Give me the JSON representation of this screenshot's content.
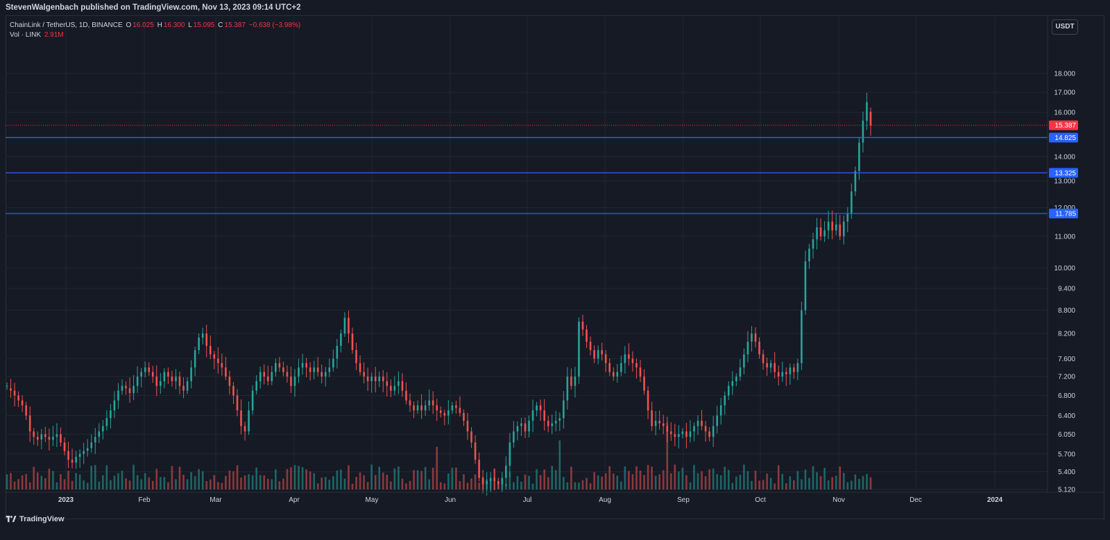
{
  "header": {
    "published_text": "StevenWalgenbach published on TradingView.com, Nov 13, 2023 09:14 UTC+2"
  },
  "legend": {
    "symbol": "ChainLink / TetherUS, 1D, BINANCE",
    "o_label": "O",
    "o_value": "16.025",
    "h_label": "H",
    "h_value": "16.300",
    "l_label": "L",
    "l_value": "15.095",
    "c_label": "C",
    "c_value": "15.387",
    "change": "−0.638 (−3.98%)",
    "vol_label": "Vol · LINK",
    "vol_value": "2.91M"
  },
  "currency_button": "USDT",
  "footer": {
    "brand": "TradingView"
  },
  "colors": {
    "up": "#26a69a",
    "down": "#ef5350",
    "level_line": "#2962ff",
    "price_tag": "#f23645",
    "grid": "#232733"
  },
  "chart_data": {
    "type": "candlestick",
    "symbol": "LINK/USDT",
    "timeframe": "1D",
    "y_scale": "log",
    "y_tick_labels": [
      "5.120",
      "5.400",
      "5.700",
      "6.050",
      "6.400",
      "6.800",
      "7.200",
      "7.600",
      "8.200",
      "8.800",
      "9.400",
      "10.000",
      "11.000",
      "12.000",
      "13.000",
      "14.000",
      "16.000",
      "17.000",
      "18.000"
    ],
    "x_tick_labels": [
      "2023",
      "Feb",
      "Mar",
      "Apr",
      "May",
      "Jun",
      "Jul",
      "Aug",
      "Sep",
      "Oct",
      "Nov",
      "Dec",
      "2024"
    ],
    "last_price": 15.387,
    "horizontal_levels": [
      14.825,
      13.325,
      11.785
    ],
    "level_labels": [
      "14.825",
      "13.325",
      "11.785"
    ],
    "last_price_label": "15.387",
    "ylim": [
      5.12,
      19.0
    ],
    "approx_closes": [
      [
        7.0,
        7.0
      ],
      [
        6.95,
        6.9
      ],
      [
        6.9,
        6.8
      ],
      [
        6.8,
        6.7
      ],
      [
        6.7,
        6.6
      ],
      [
        6.6,
        6.4
      ],
      [
        6.4,
        6.1
      ],
      [
        6.1,
        6.0
      ],
      [
        6.0,
        5.95
      ],
      [
        5.95,
        6.05
      ],
      [
        6.05,
        6.0
      ],
      [
        6.0,
        5.95
      ],
      [
        5.95,
        6.0
      ],
      [
        6.0,
        6.05
      ],
      [
        6.05,
        5.9
      ],
      [
        5.9,
        5.75
      ],
      [
        5.75,
        5.6
      ],
      [
        5.6,
        5.55
      ],
      [
        5.55,
        5.65
      ],
      [
        5.65,
        5.7
      ],
      [
        5.7,
        5.75
      ],
      [
        5.75,
        5.8
      ],
      [
        5.8,
        5.9
      ],
      [
        5.9,
        6.0
      ],
      [
        6.0,
        6.1
      ],
      [
        6.1,
        6.2
      ],
      [
        6.2,
        6.35
      ],
      [
        6.35,
        6.5
      ],
      [
        6.5,
        6.7
      ],
      [
        6.7,
        6.9
      ],
      [
        6.9,
        7.0
      ],
      [
        7.0,
        6.95
      ],
      [
        6.95,
        6.85
      ],
      [
        6.85,
        7.0
      ],
      [
        7.0,
        7.2
      ],
      [
        7.2,
        7.3
      ],
      [
        7.3,
        7.4
      ],
      [
        7.4,
        7.3
      ],
      [
        7.3,
        7.2
      ],
      [
        7.2,
        7.0
      ],
      [
        7.0,
        7.1
      ],
      [
        7.1,
        7.3
      ],
      [
        7.3,
        7.2
      ],
      [
        7.2,
        7.1
      ],
      [
        7.1,
        7.2
      ],
      [
        7.2,
        7.0
      ],
      [
        7.0,
        6.9
      ],
      [
        6.9,
        7.1
      ],
      [
        7.1,
        7.4
      ],
      [
        7.4,
        7.8
      ],
      [
        7.8,
        8.1
      ],
      [
        8.1,
        8.2
      ],
      [
        8.2,
        7.9
      ],
      [
        7.9,
        7.7
      ],
      [
        7.7,
        7.6
      ],
      [
        7.6,
        7.5
      ],
      [
        7.5,
        7.4
      ],
      [
        7.4,
        7.2
      ],
      [
        7.2,
        7.0
      ],
      [
        7.0,
        6.8
      ],
      [
        6.8,
        6.5
      ],
      [
        6.5,
        6.2
      ],
      [
        6.2,
        6.1
      ],
      [
        6.1,
        6.5
      ],
      [
        6.5,
        6.9
      ],
      [
        6.9,
        7.1
      ],
      [
        7.1,
        7.3
      ],
      [
        7.3,
        7.2
      ],
      [
        7.2,
        7.1
      ],
      [
        7.1,
        7.3
      ],
      [
        7.3,
        7.5
      ],
      [
        7.5,
        7.4
      ],
      [
        7.4,
        7.3
      ],
      [
        7.3,
        7.2
      ],
      [
        7.2,
        7.0
      ],
      [
        7.0,
        7.2
      ],
      [
        7.2,
        7.4
      ],
      [
        7.4,
        7.5
      ],
      [
        7.5,
        7.4
      ],
      [
        7.4,
        7.3
      ],
      [
        7.3,
        7.4
      ],
      [
        7.4,
        7.3
      ],
      [
        7.3,
        7.2
      ],
      [
        7.2,
        7.3
      ],
      [
        7.3,
        7.4
      ],
      [
        7.4,
        7.6
      ],
      [
        7.6,
        7.9
      ],
      [
        7.9,
        8.2
      ],
      [
        8.2,
        8.6
      ],
      [
        8.6,
        8.2
      ],
      [
        8.2,
        7.8
      ],
      [
        7.8,
        7.5
      ],
      [
        7.5,
        7.3
      ],
      [
        7.3,
        7.2
      ],
      [
        7.2,
        7.1
      ],
      [
        7.1,
        7.2
      ],
      [
        7.2,
        7.1
      ],
      [
        7.1,
        7.2
      ],
      [
        7.2,
        7.1
      ],
      [
        7.1,
        7.0
      ],
      [
        7.0,
        6.9
      ],
      [
        6.9,
        7.0
      ],
      [
        7.0,
        7.1
      ],
      [
        7.1,
        6.9
      ],
      [
        6.9,
        6.7
      ],
      [
        6.7,
        6.6
      ],
      [
        6.6,
        6.5
      ],
      [
        6.5,
        6.6
      ],
      [
        6.6,
        6.5
      ],
      [
        6.5,
        6.6
      ],
      [
        6.6,
        6.7
      ],
      [
        6.7,
        6.6
      ],
      [
        6.6,
        6.5
      ],
      [
        6.5,
        6.45
      ],
      [
        6.45,
        6.4
      ],
      [
        6.4,
        6.5
      ],
      [
        6.5,
        6.6
      ],
      [
        6.6,
        6.55
      ],
      [
        6.55,
        6.45
      ],
      [
        6.45,
        6.3
      ],
      [
        6.3,
        6.1
      ],
      [
        6.1,
        5.9
      ],
      [
        5.9,
        5.6
      ],
      [
        5.6,
        5.3
      ],
      [
        5.3,
        5.2
      ],
      [
        5.2,
        5.25
      ],
      [
        5.25,
        5.3
      ],
      [
        5.3,
        5.25
      ],
      [
        5.25,
        5.2
      ],
      [
        5.2,
        5.3
      ],
      [
        5.3,
        5.5
      ],
      [
        5.5,
        5.9
      ],
      [
        5.9,
        6.1
      ],
      [
        6.1,
        6.2
      ],
      [
        6.2,
        6.25
      ],
      [
        6.25,
        6.1
      ],
      [
        6.1,
        6.3
      ],
      [
        6.3,
        6.5
      ],
      [
        6.5,
        6.6
      ],
      [
        6.6,
        6.5
      ],
      [
        6.5,
        6.3
      ],
      [
        6.3,
        6.2
      ],
      [
        6.2,
        6.25
      ],
      [
        6.25,
        6.3
      ],
      [
        6.3,
        6.35
      ],
      [
        6.35,
        6.7
      ],
      [
        6.7,
        7.2
      ],
      [
        7.2,
        7.0
      ],
      [
        7.0,
        7.2
      ],
      [
        7.2,
        8.5
      ],
      [
        8.5,
        8.3
      ],
      [
        8.3,
        8.0
      ],
      [
        8.0,
        7.8
      ],
      [
        7.8,
        7.6
      ],
      [
        7.6,
        7.8
      ],
      [
        7.8,
        7.7
      ],
      [
        7.7,
        7.5
      ],
      [
        7.5,
        7.3
      ],
      [
        7.3,
        7.2
      ],
      [
        7.2,
        7.3
      ],
      [
        7.3,
        7.5
      ],
      [
        7.5,
        7.7
      ],
      [
        7.7,
        7.6
      ],
      [
        7.6,
        7.5
      ],
      [
        7.5,
        7.4
      ],
      [
        7.4,
        7.2
      ],
      [
        7.2,
        6.9
      ],
      [
        6.9,
        6.5
      ],
      [
        6.5,
        6.2
      ],
      [
        6.2,
        6.3
      ],
      [
        6.3,
        6.25
      ],
      [
        6.25,
        6.2
      ],
      [
        6.2,
        6.1
      ],
      [
        6.1,
        6.05
      ],
      [
        6.05,
        6.0
      ],
      [
        6.0,
        6.05
      ],
      [
        6.05,
        6.1
      ],
      [
        6.1,
        6.0
      ],
      [
        6.0,
        6.1
      ],
      [
        6.1,
        6.2
      ],
      [
        6.2,
        6.3
      ],
      [
        6.3,
        6.2
      ],
      [
        6.2,
        6.1
      ],
      [
        6.1,
        6.0
      ],
      [
        6.0,
        6.2
      ],
      [
        6.2,
        6.4
      ],
      [
        6.4,
        6.6
      ],
      [
        6.6,
        6.8
      ],
      [
        6.8,
        7.0
      ],
      [
        7.0,
        7.1
      ],
      [
        7.1,
        7.2
      ],
      [
        7.2,
        7.4
      ],
      [
        7.4,
        7.7
      ],
      [
        7.7,
        8.0
      ],
      [
        8.0,
        8.2
      ],
      [
        8.2,
        8.0
      ],
      [
        8.0,
        7.7
      ],
      [
        7.7,
        7.5
      ],
      [
        7.5,
        7.4
      ],
      [
        7.4,
        7.5
      ],
      [
        7.5,
        7.3
      ],
      [
        7.3,
        7.2
      ],
      [
        7.2,
        7.3
      ],
      [
        7.3,
        7.25
      ],
      [
        7.25,
        7.4
      ],
      [
        7.4,
        7.3
      ],
      [
        7.3,
        7.5
      ],
      [
        7.5,
        8.8
      ],
      [
        8.8,
        10.2
      ],
      [
        10.2,
        10.6
      ],
      [
        10.6,
        10.9
      ],
      [
        10.9,
        11.3
      ],
      [
        11.3,
        11.0
      ],
      [
        11.0,
        11.2
      ],
      [
        11.2,
        11.5
      ],
      [
        11.5,
        11.2
      ],
      [
        11.2,
        11.4
      ],
      [
        11.4,
        11.0
      ],
      [
        11.0,
        11.5
      ],
      [
        11.5,
        11.8
      ],
      [
        11.8,
        12.6
      ],
      [
        12.6,
        13.4
      ],
      [
        13.4,
        14.6
      ],
      [
        14.6,
        15.6
      ],
      [
        15.6,
        16.5
      ],
      [
        16.025,
        15.387
      ]
    ]
  }
}
